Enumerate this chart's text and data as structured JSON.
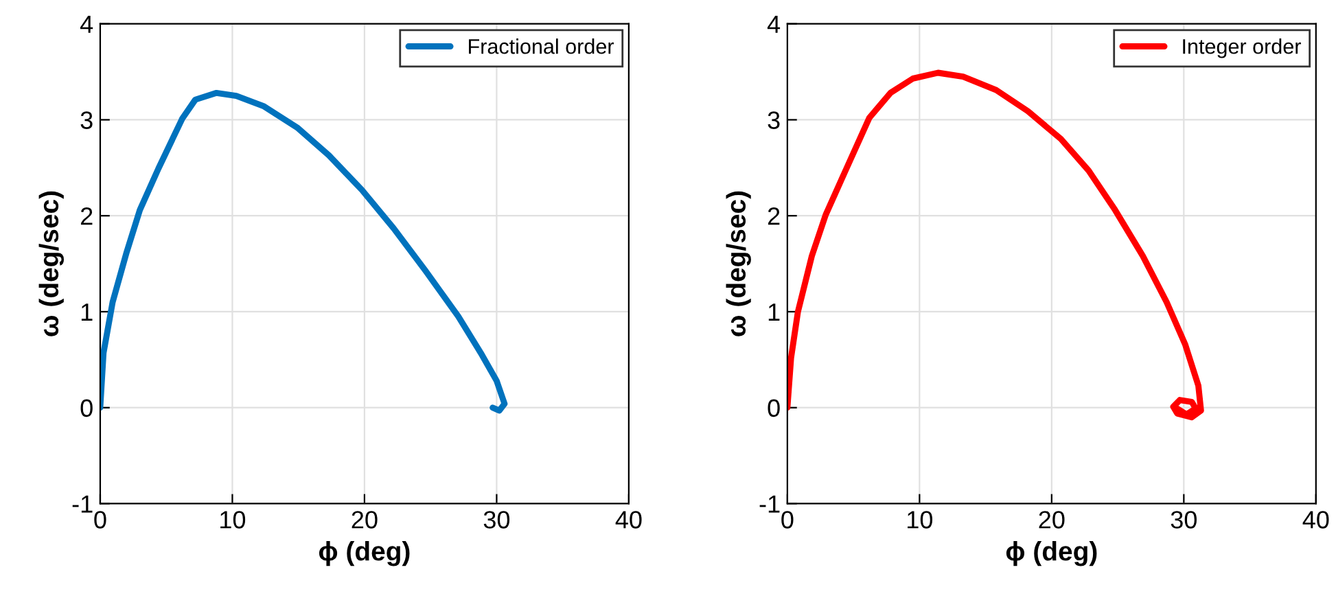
{
  "chart_data": [
    {
      "type": "line",
      "xlabel": "ϕ (deg)",
      "ylabel": "ω (deg/sec)",
      "xlim": [
        0,
        40
      ],
      "ylim": [
        -1,
        4
      ],
      "xticks": [
        0,
        10,
        20,
        30,
        40
      ],
      "yticks": [
        -1,
        0,
        1,
        2,
        3,
        4
      ],
      "grid": true,
      "legend": "top right",
      "series": [
        {
          "name": "Fractional order",
          "color": "#0072bd",
          "x": [
            0,
            0.25,
            0.94,
            2.0,
            3.0,
            4.4,
            6.2,
            7.2,
            8.8,
            10.3,
            12.4,
            14.9,
            17.3,
            19.8,
            22.2,
            24.6,
            27.1,
            28.8,
            30.0,
            30.6,
            30.2,
            29.7
          ],
          "values": [
            0,
            0.57,
            1.1,
            1.62,
            2.06,
            2.49,
            3.01,
            3.21,
            3.28,
            3.25,
            3.14,
            2.92,
            2.63,
            2.27,
            1.87,
            1.43,
            0.95,
            0.57,
            0.28,
            0.04,
            -0.03,
            0
          ]
        }
      ]
    },
    {
      "type": "line",
      "xlabel": "ϕ (deg)",
      "ylabel": "ω (deg/sec)",
      "xlim": [
        0,
        40
      ],
      "ylim": [
        -1,
        4
      ],
      "xticks": [
        0,
        10,
        20,
        30,
        40
      ],
      "yticks": [
        -1,
        0,
        1,
        2,
        3,
        4
      ],
      "grid": true,
      "legend": "top right",
      "series": [
        {
          "name": "Integer order",
          "color": "#ff0000",
          "x": [
            0,
            0.28,
            0.8,
            1.85,
            2.9,
            4.3,
            6.2,
            7.8,
            9.5,
            11.4,
            13.3,
            15.8,
            18.2,
            20.7,
            22.8,
            24.8,
            26.9,
            28.7,
            30.1,
            31.1,
            31.3,
            30.6,
            29.5,
            29.2,
            29.7,
            30.6,
            30.9,
            30.2,
            29.5
          ],
          "values": [
            0,
            0.52,
            1.0,
            1.58,
            2.01,
            2.44,
            3.02,
            3.28,
            3.43,
            3.49,
            3.45,
            3.31,
            3.09,
            2.8,
            2.47,
            2.06,
            1.58,
            1.1,
            0.66,
            0.23,
            -0.03,
            -0.1,
            -0.06,
            0.01,
            0.08,
            0.06,
            -0.01,
            -0.07,
            -0.01
          ]
        }
      ]
    }
  ]
}
